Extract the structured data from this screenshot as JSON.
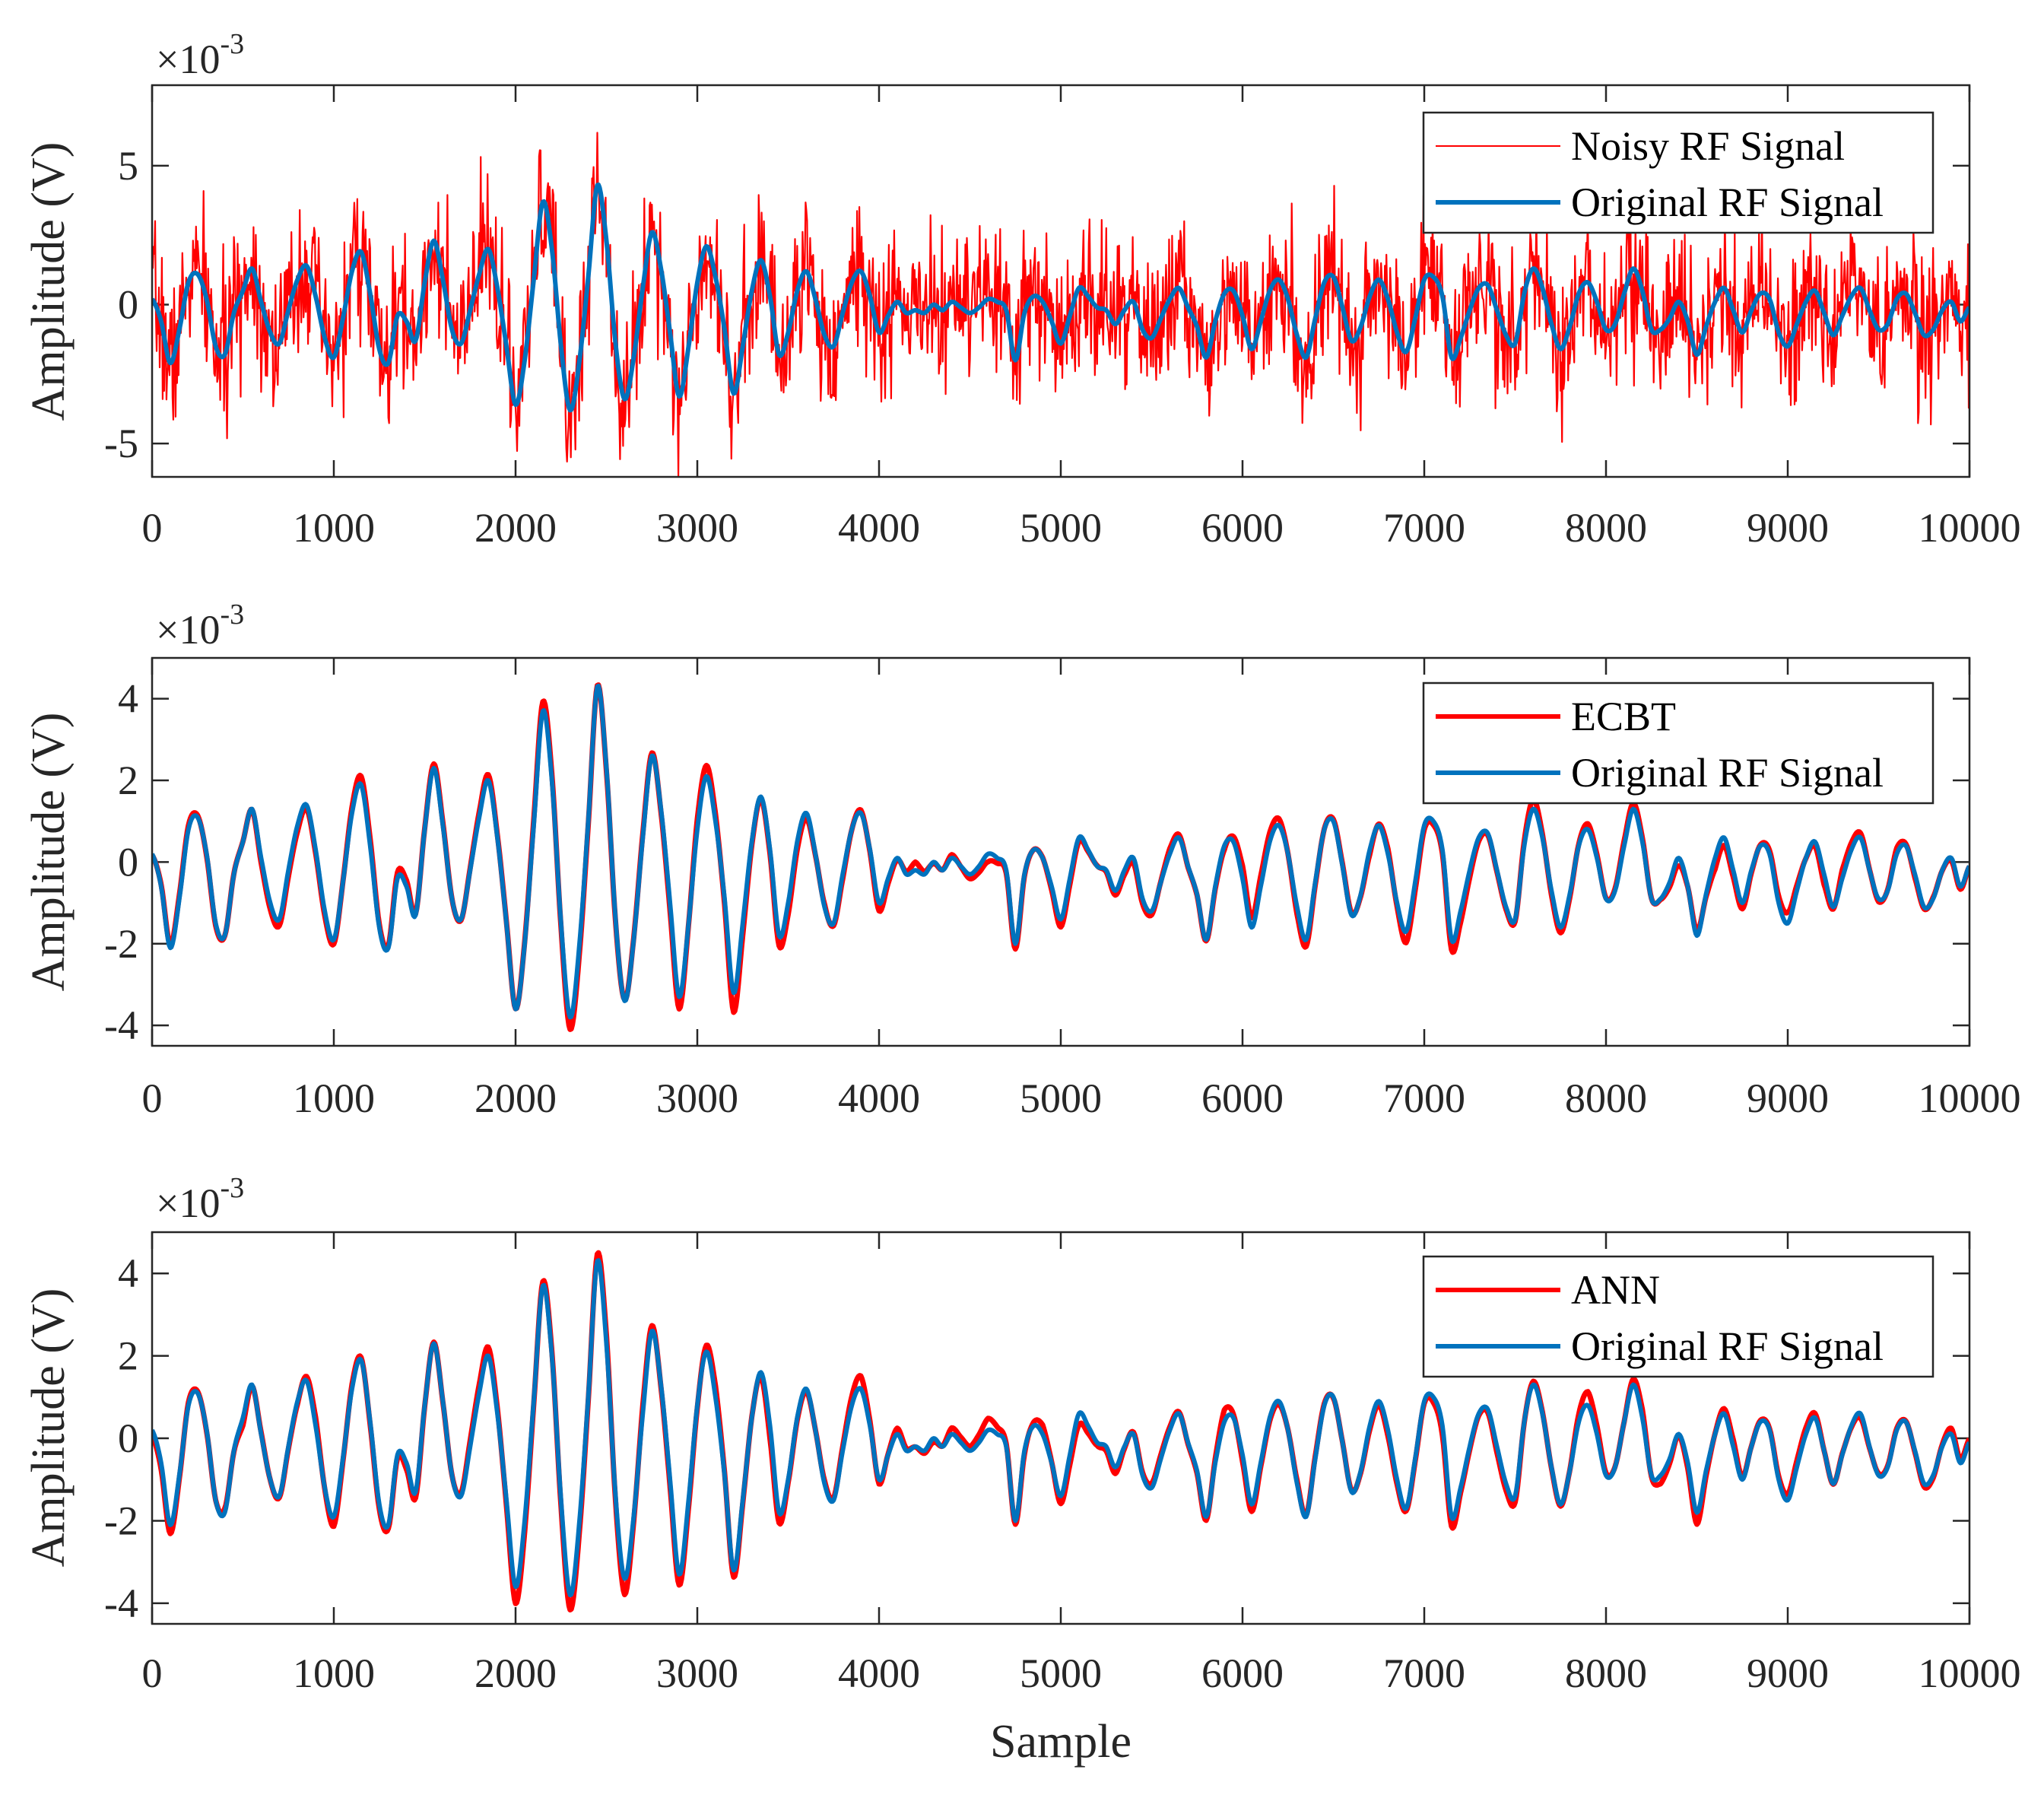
{
  "chart_data": [
    {
      "type": "line",
      "ylabel": "Amplitude (V)",
      "xlabel": "",
      "exponent_base": "×10",
      "exponent_power": "-3",
      "xlim": [
        0,
        10000
      ],
      "ylim": [
        -6.2,
        7.9
      ],
      "x_ticks": [
        "0",
        "1000",
        "2000",
        "3000",
        "4000",
        "5000",
        "6000",
        "7000",
        "8000",
        "9000",
        "10000"
      ],
      "y_ticks": [
        "-5",
        "0",
        "5"
      ],
      "y_tick_values": [
        -5,
        0,
        5
      ],
      "legend_position": "top-right",
      "series": [
        {
          "name": "Noisy RF Signal",
          "color": "#ff0000",
          "style": "noisy",
          "noise_std": 1.3,
          "noise_seed": 7
        },
        {
          "name": "Original RF Signal",
          "color": "#0072bd",
          "style": "clean"
        }
      ]
    },
    {
      "type": "line",
      "ylabel": "Amplitude (V)",
      "xlabel": "",
      "exponent_base": "×10",
      "exponent_power": "-3",
      "xlim": [
        0,
        10000
      ],
      "ylim": [
        -4.5,
        5.0
      ],
      "x_ticks": [
        "0",
        "1000",
        "2000",
        "3000",
        "4000",
        "5000",
        "6000",
        "7000",
        "8000",
        "9000",
        "10000"
      ],
      "y_ticks": [
        "-4",
        "-2",
        "0",
        "2",
        "4"
      ],
      "y_tick_values": [
        -4,
        -2,
        0,
        2,
        4
      ],
      "legend_position": "top-right",
      "series": [
        {
          "name": "ECBT",
          "color": "#ff0000",
          "style": "denoised",
          "deviation": 0.14,
          "noise_seed": 11
        },
        {
          "name": "Original RF Signal",
          "color": "#0072bd",
          "style": "clean"
        }
      ]
    },
    {
      "type": "line",
      "ylabel": "Amplitude (V)",
      "xlabel": "Sample",
      "exponent_base": "×10",
      "exponent_power": "-3",
      "xlim": [
        0,
        10000
      ],
      "ylim": [
        -4.5,
        5.0
      ],
      "x_ticks": [
        "0",
        "1000",
        "2000",
        "3000",
        "4000",
        "5000",
        "6000",
        "7000",
        "8000",
        "9000",
        "10000"
      ],
      "y_ticks": [
        "-4",
        "-2",
        "0",
        "2",
        "4"
      ],
      "y_tick_values": [
        -4,
        -2,
        0,
        2,
        4
      ],
      "legend_position": "top-right",
      "series": [
        {
          "name": "ANN",
          "color": "#ff0000",
          "style": "denoised",
          "deviation": 0.12,
          "noise_seed": 23
        },
        {
          "name": "Original RF Signal",
          "color": "#0072bd",
          "style": "clean"
        }
      ]
    }
  ],
  "original_signal": {
    "sample_step": 50,
    "x_start": 0,
    "values": [
      0.2,
      -0.6,
      -2.1,
      -0.9,
      0.8,
      1.1,
      0.2,
      -1.5,
      -1.8,
      -0.3,
      0.5,
      1.3,
      0.1,
      -1.0,
      -1.4,
      -0.2,
      0.9,
      1.4,
      0.3,
      -1.2,
      -1.9,
      -0.5,
      1.2,
      1.9,
      0.4,
      -1.6,
      -2.1,
      -0.4,
      -0.6,
      -1.3,
      0.8,
      2.3,
      0.9,
      -0.9,
      -1.4,
      -0.2,
      1.1,
      2.0,
      0.6,
      -1.5,
      -3.6,
      -2.0,
      0.9,
      3.7,
      2.0,
      -1.5,
      -3.8,
      -2.1,
      1.0,
      4.3,
      2.3,
      -1.4,
      -3.4,
      -1.9,
      0.6,
      2.6,
      1.3,
      -1.0,
      -3.3,
      -1.6,
      0.8,
      2.1,
      1.0,
      -0.9,
      -3.2,
      -1.5,
      0.5,
      1.6,
      0.3,
      -1.8,
      -1.0,
      0.5,
      1.2,
      0.2,
      -1.1,
      -1.5,
      -0.3,
      0.8,
      1.2,
      0.3,
      -1.0,
      -0.4,
      0.1,
      -0.3,
      -0.2,
      -0.3,
      0.0,
      -0.2,
      0.1,
      -0.1,
      -0.3,
      -0.1,
      0.2,
      0.1,
      -0.2,
      -2.0,
      -0.3,
      0.3,
      0.1,
      -0.6,
      -1.4,
      -0.4,
      0.6,
      0.3,
      -0.1,
      -0.2,
      -0.7,
      -0.2,
      0.1,
      -0.9,
      -1.2,
      -0.5,
      0.2,
      0.6,
      -0.1,
      -0.8,
      -1.9,
      -0.6,
      0.4,
      0.5,
      -0.4,
      -1.6,
      -0.6,
      0.5,
      0.9,
      0.2,
      -1.1,
      -1.9,
      -0.5,
      0.8,
      1.0,
      -0.1,
      -1.3,
      -0.8,
      0.3,
      0.9,
      0.2,
      -1.0,
      -1.7,
      -0.5,
      0.9,
      1.0,
      0.3,
      -1.9,
      -1.2,
      -0.2,
      0.6,
      0.7,
      -0.2,
      -1.1,
      -1.4,
      0.4,
      1.3,
      0.6,
      -0.7,
      -1.6,
      -0.8,
      0.4,
      0.8,
      0.1,
      -0.9,
      -0.7,
      0.4,
      1.3,
      0.5,
      -0.9,
      -0.9,
      -0.5,
      0.1,
      -0.6,
      -1.8,
      -0.8,
      0.1,
      0.6,
      -0.2,
      -1.0,
      -0.2,
      0.4,
      0.2,
      -1.0,
      -1.5,
      -0.7,
      0.1,
      0.5,
      -0.3,
      -1.1,
      -0.4,
      0.3,
      0.6,
      -0.2,
      -0.9,
      -0.7,
      0.2,
      0.4,
      -0.3,
      -1.1,
      -0.9,
      -0.2,
      0.1,
      -0.6,
      -0.1
    ]
  }
}
